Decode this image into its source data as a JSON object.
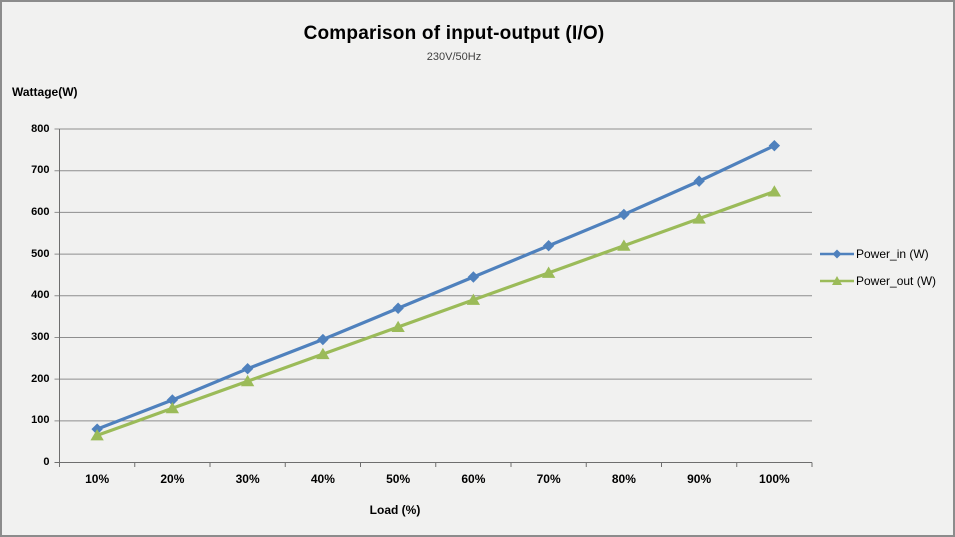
{
  "chart_data": {
    "type": "line",
    "title": "Comparison of input-output (I/O)",
    "subtitle": "230V/50Hz",
    "xlabel": "Load (%)",
    "ylabel": "Wattage(W)",
    "categories": [
      "10%",
      "20%",
      "30%",
      "40%",
      "50%",
      "60%",
      "70%",
      "80%",
      "90%",
      "100%"
    ],
    "series": [
      {
        "name": "Power_in (W)",
        "marker": "diamond",
        "color": "#4F81BD",
        "values": [
          80,
          150,
          225,
          295,
          370,
          445,
          520,
          595,
          675,
          760
        ]
      },
      {
        "name": "Power_out (W)",
        "marker": "triangle",
        "color": "#9BBB59",
        "values": [
          65,
          130,
          195,
          260,
          325,
          390,
          455,
          520,
          585,
          650
        ]
      }
    ],
    "ylim": [
      0,
      800
    ],
    "ytick_step": 100,
    "grid": true,
    "legend_position": "right"
  },
  "colors": {
    "background": "#F1F1F0",
    "frame_border": "#8C8C8C",
    "gridline": "#8E8E8E",
    "axis": "#6E6E6E",
    "text": "#000000"
  }
}
